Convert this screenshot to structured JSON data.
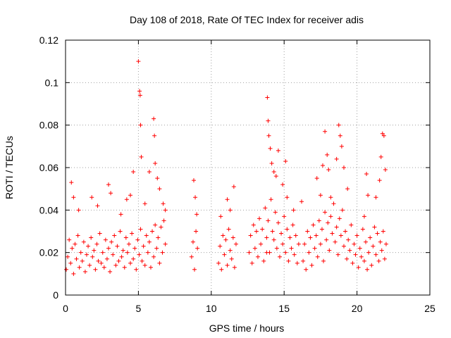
{
  "chart_data": {
    "type": "scatter",
    "title": "Day 108 of 2018, Rate Of TEC Index for receiver adis",
    "xlabel": "GPS time / hours",
    "ylabel": "ROTI / TECUs",
    "xlim": [
      0,
      25
    ],
    "ylim": [
      0,
      0.12
    ],
    "xticks": [
      0,
      5,
      10,
      15,
      20,
      25
    ],
    "xtick_labels": [
      "0",
      "5",
      "10",
      "15",
      "20",
      "25"
    ],
    "yticks": [
      0,
      0.02,
      0.04,
      0.06,
      0.08,
      0.1,
      0.12
    ],
    "ytick_labels": [
      "0",
      "0.02",
      "0.04",
      "0.06",
      "0.08",
      "0.1",
      "0.12"
    ],
    "grid": true,
    "marker": "+",
    "color": "#ff0000",
    "series": [
      {
        "name": "ROTI",
        "x": [
          0.05,
          0.15,
          0.25,
          0.35,
          0.45,
          0.55,
          0.65,
          0.75,
          0.85,
          0.95,
          1.05,
          1.15,
          1.25,
          1.35,
          1.45,
          1.55,
          1.65,
          1.75,
          1.85,
          1.95,
          2.05,
          2.15,
          2.25,
          2.35,
          2.45,
          2.55,
          2.65,
          2.75,
          2.85,
          2.95,
          3.05,
          3.15,
          3.25,
          3.35,
          3.45,
          3.55,
          3.65,
          3.75,
          3.85,
          3.95,
          4.05,
          4.15,
          4.25,
          4.35,
          4.45,
          4.55,
          4.65,
          4.75,
          4.85,
          4.95,
          5.05,
          5.15,
          5.25,
          5.35,
          5.45,
          5.55,
          5.65,
          5.75,
          5.85,
          5.95,
          6.05,
          6.15,
          6.25,
          6.35,
          6.45,
          6.55,
          6.65,
          6.75,
          6.85,
          0.4,
          0.55,
          0.9,
          1.8,
          2.2,
          2.95,
          3.1,
          3.8,
          4.2,
          4.45,
          4.65,
          5.0,
          5.08,
          5.12,
          5.15,
          5.2,
          5.45,
          5.75,
          6.05,
          6.1,
          6.15,
          6.3,
          6.45,
          6.7,
          6.85,
          8.65,
          8.75,
          8.85,
          8.95,
          9.05,
          8.8,
          8.9,
          9.0,
          10.5,
          10.6,
          10.7,
          10.8,
          10.9,
          11.0,
          11.1,
          11.2,
          11.3,
          11.4,
          11.5,
          11.6,
          11.7,
          10.65,
          11.1,
          11.3,
          11.55,
          12.6,
          12.7,
          12.8,
          12.9,
          13.0,
          13.1,
          13.2,
          13.3,
          13.4,
          13.5,
          13.6,
          13.7,
          13.8,
          13.9,
          14.0,
          14.1,
          14.2,
          14.3,
          14.4,
          14.5,
          14.6,
          14.7,
          14.8,
          14.9,
          15.0,
          15.1,
          15.2,
          15.3,
          15.4,
          15.5,
          15.6,
          15.7,
          15.8,
          15.9,
          16.0,
          13.8,
          13.85,
          13.9,
          13.95,
          14.05,
          14.15,
          14.3,
          14.45,
          14.6,
          14.9,
          15.1,
          15.2,
          15.65,
          16.2,
          16.3,
          16.4,
          16.5,
          16.6,
          16.7,
          16.8,
          16.9,
          17.0,
          17.1,
          17.2,
          17.3,
          17.4,
          17.5,
          17.6,
          17.7,
          17.8,
          17.9,
          18.0,
          18.1,
          18.2,
          18.3,
          18.4,
          18.5,
          18.6,
          18.7,
          18.8,
          18.9,
          19.0,
          19.1,
          19.2,
          19.3,
          19.4,
          19.5,
          19.6,
          19.7,
          19.8,
          19.9,
          20.0,
          20.1,
          20.2,
          20.3,
          20.4,
          20.5,
          20.6,
          20.7,
          20.8,
          20.9,
          21.0,
          21.1,
          21.2,
          21.3,
          21.4,
          21.5,
          21.6,
          21.7,
          21.8,
          21.9,
          22.0,
          17.25,
          17.5,
          17.65,
          17.8,
          17.95,
          18.05,
          18.2,
          18.6,
          18.75,
          18.85,
          18.95,
          19.1,
          19.35,
          20.5,
          20.65,
          20.75,
          21.3,
          21.55,
          21.65,
          21.75,
          21.85,
          21.95
        ],
        "y": [
          0.012,
          0.018,
          0.026,
          0.015,
          0.022,
          0.01,
          0.024,
          0.017,
          0.028,
          0.013,
          0.02,
          0.016,
          0.025,
          0.011,
          0.019,
          0.023,
          0.014,
          0.027,
          0.018,
          0.021,
          0.012,
          0.024,
          0.016,
          0.029,
          0.015,
          0.02,
          0.013,
          0.026,
          0.017,
          0.022,
          0.011,
          0.025,
          0.019,
          0.028,
          0.014,
          0.023,
          0.016,
          0.03,
          0.018,
          0.021,
          0.013,
          0.027,
          0.02,
          0.024,
          0.015,
          0.029,
          0.017,
          0.022,
          0.012,
          0.026,
          0.019,
          0.031,
          0.016,
          0.023,
          0.014,
          0.028,
          0.02,
          0.025,
          0.013,
          0.03,
          0.018,
          0.033,
          0.022,
          0.027,
          0.015,
          0.032,
          0.02,
          0.035,
          0.024,
          0.053,
          0.046,
          0.04,
          0.046,
          0.042,
          0.052,
          0.048,
          0.038,
          0.045,
          0.047,
          0.058,
          0.11,
          0.096,
          0.094,
          0.08,
          0.065,
          0.043,
          0.058,
          0.083,
          0.075,
          0.062,
          0.055,
          0.05,
          0.043,
          0.04,
          0.018,
          0.025,
          0.012,
          0.03,
          0.022,
          0.054,
          0.046,
          0.038,
          0.015,
          0.023,
          0.012,
          0.028,
          0.019,
          0.026,
          0.014,
          0.031,
          0.021,
          0.017,
          0.027,
          0.013,
          0.024,
          0.037,
          0.045,
          0.04,
          0.051,
          0.02,
          0.028,
          0.015,
          0.033,
          0.022,
          0.03,
          0.018,
          0.036,
          0.024,
          0.031,
          0.016,
          0.041,
          0.027,
          0.035,
          0.02,
          0.045,
          0.03,
          0.026,
          0.039,
          0.022,
          0.034,
          0.018,
          0.029,
          0.024,
          0.037,
          0.02,
          0.031,
          0.016,
          0.027,
          0.022,
          0.033,
          0.019,
          0.028,
          0.015,
          0.024,
          0.02,
          0.093,
          0.082,
          0.075,
          0.069,
          0.062,
          0.058,
          0.056,
          0.068,
          0.052,
          0.063,
          0.046,
          0.04,
          0.044,
          0.016,
          0.024,
          0.012,
          0.03,
          0.02,
          0.027,
          0.014,
          0.033,
          0.022,
          0.028,
          0.018,
          0.035,
          0.024,
          0.031,
          0.016,
          0.039,
          0.026,
          0.034,
          0.021,
          0.037,
          0.029,
          0.043,
          0.025,
          0.032,
          0.019,
          0.036,
          0.028,
          0.04,
          0.023,
          0.03,
          0.017,
          0.026,
          0.021,
          0.033,
          0.015,
          0.024,
          0.019,
          0.028,
          0.013,
          0.022,
          0.018,
          0.031,
          0.016,
          0.025,
          0.012,
          0.02,
          0.027,
          0.014,
          0.023,
          0.032,
          0.019,
          0.029,
          0.016,
          0.025,
          0.021,
          0.03,
          0.017,
          0.024,
          0.055,
          0.047,
          0.061,
          0.077,
          0.066,
          0.059,
          0.046,
          0.064,
          0.08,
          0.075,
          0.07,
          0.06,
          0.05,
          0.037,
          0.057,
          0.047,
          0.046,
          0.054,
          0.065,
          0.076,
          0.075,
          0.059
        ]
      }
    ]
  }
}
